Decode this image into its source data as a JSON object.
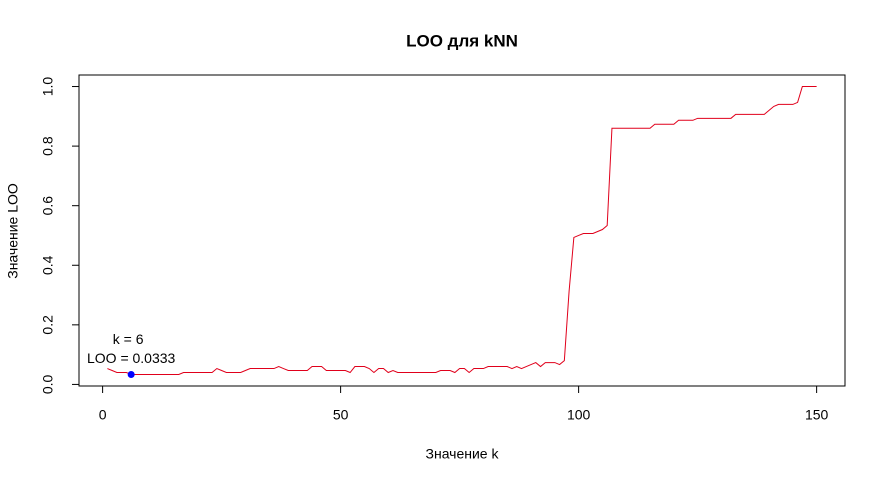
{
  "chart_data": {
    "type": "line",
    "title": "LOO для kNN",
    "x_label": "Значение k",
    "y_label": "Значение LOO",
    "x": [
      1,
      2,
      3,
      4,
      5,
      6,
      7,
      8,
      9,
      10,
      11,
      12,
      13,
      14,
      15,
      16,
      17,
      18,
      19,
      20,
      21,
      22,
      23,
      24,
      25,
      26,
      27,
      28,
      29,
      30,
      31,
      32,
      33,
      34,
      35,
      36,
      37,
      38,
      39,
      40,
      41,
      42,
      43,
      44,
      45,
      46,
      47,
      48,
      49,
      50,
      51,
      52,
      53,
      54,
      55,
      56,
      57,
      58,
      59,
      60,
      61,
      62,
      63,
      64,
      65,
      66,
      67,
      68,
      69,
      70,
      71,
      72,
      73,
      74,
      75,
      76,
      77,
      78,
      79,
      80,
      81,
      82,
      83,
      84,
      85,
      86,
      87,
      88,
      89,
      90,
      91,
      92,
      93,
      94,
      95,
      96,
      97,
      98,
      99,
      100,
      101,
      102,
      103,
      104,
      105,
      106,
      107,
      108,
      109,
      110,
      111,
      112,
      113,
      114,
      115,
      116,
      117,
      118,
      119,
      120,
      121,
      122,
      123,
      124,
      125,
      126,
      127,
      128,
      129,
      130,
      131,
      132,
      133,
      134,
      135,
      136,
      137,
      138,
      139,
      140,
      141,
      142,
      143,
      144,
      145,
      146,
      147,
      148,
      149,
      150
    ],
    "series": [
      {
        "name": "LOO",
        "color": "#e0001b",
        "values": [
          0.0533,
          0.0467,
          0.04,
          0.04,
          0.04,
          0.0333,
          0.0333,
          0.0333,
          0.0333,
          0.0333,
          0.0333,
          0.0333,
          0.0333,
          0.0333,
          0.0333,
          0.0333,
          0.04,
          0.04,
          0.04,
          0.04,
          0.04,
          0.04,
          0.04,
          0.0533,
          0.0467,
          0.04,
          0.04,
          0.04,
          0.04,
          0.0467,
          0.0533,
          0.0533,
          0.0533,
          0.0533,
          0.0533,
          0.0533,
          0.06,
          0.0533,
          0.0467,
          0.0467,
          0.0467,
          0.0467,
          0.0467,
          0.06,
          0.06,
          0.06,
          0.0467,
          0.0467,
          0.0467,
          0.0467,
          0.0467,
          0.04,
          0.06,
          0.06,
          0.06,
          0.0533,
          0.04,
          0.0533,
          0.0533,
          0.04,
          0.0467,
          0.04,
          0.04,
          0.04,
          0.04,
          0.04,
          0.04,
          0.04,
          0.04,
          0.04,
          0.0467,
          0.0467,
          0.0467,
          0.04,
          0.0533,
          0.0533,
          0.04,
          0.0533,
          0.0533,
          0.0533,
          0.06,
          0.06,
          0.06,
          0.06,
          0.06,
          0.0533,
          0.06,
          0.0533,
          0.06,
          0.0667,
          0.0733,
          0.06,
          0.0733,
          0.0733,
          0.0733,
          0.0667,
          0.08,
          0.3133,
          0.4933,
          0.5,
          0.5067,
          0.5067,
          0.5067,
          0.5133,
          0.52,
          0.5333,
          0.86,
          0.86,
          0.86,
          0.86,
          0.86,
          0.86,
          0.86,
          0.86,
          0.86,
          0.8733,
          0.8733,
          0.8733,
          0.8733,
          0.8733,
          0.8867,
          0.8867,
          0.8867,
          0.8867,
          0.8933,
          0.8933,
          0.8933,
          0.8933,
          0.8933,
          0.8933,
          0.8933,
          0.8933,
          0.9067,
          0.9067,
          0.9067,
          0.9067,
          0.9067,
          0.9067,
          0.9067,
          0.92,
          0.9333,
          0.94,
          0.94,
          0.94,
          0.94,
          0.9467,
          1.0,
          1.0,
          1.0,
          1.0
        ]
      }
    ],
    "highlight": {
      "x": 6,
      "y": 0.0333,
      "color": "#0000ff"
    },
    "annotations": [
      "k =  6",
      "LOO =  0.0333"
    ],
    "xlim": [
      -4.96,
      155.96
    ],
    "ylim": [
      -0.0053,
      1.0387
    ],
    "xticks": [
      0,
      50,
      100,
      150
    ],
    "yticks": [
      {
        "value": 0,
        "label": "0.0"
      },
      {
        "value": 0.2,
        "label": "0.2"
      },
      {
        "value": 0.4,
        "label": "0.4"
      },
      {
        "value": 0.6,
        "label": "0.6"
      },
      {
        "value": 0.8,
        "label": "0.8"
      },
      {
        "value": 1,
        "label": "1.0"
      }
    ]
  }
}
